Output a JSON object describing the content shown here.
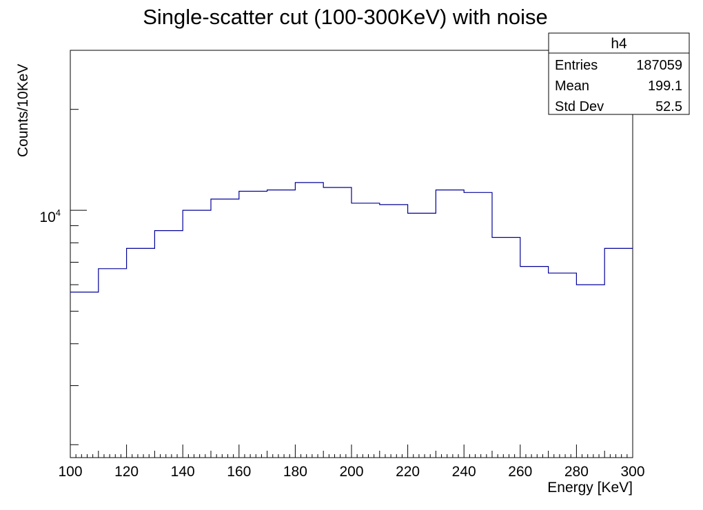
{
  "chart_data": {
    "type": "histogram",
    "title": "Single-scatter cut (100-300KeV) with noise",
    "xlabel": "Energy [KeV]",
    "ylabel": "Counts/10KeV",
    "y_scale": "log",
    "xlim": [
      100,
      300
    ],
    "ylim": [
      1830,
      30000
    ],
    "x_tick_labels": [
      "100",
      "120",
      "140",
      "160",
      "180",
      "200",
      "220",
      "240",
      "260",
      "280",
      "300"
    ],
    "y_tick_label": {
      "base": "10",
      "exponent": "4"
    },
    "bin_edges": [
      100,
      110,
      120,
      130,
      140,
      150,
      160,
      170,
      180,
      190,
      200,
      210,
      220,
      230,
      240,
      250,
      260,
      270,
      280,
      290,
      300
    ],
    "values": [
      5700,
      6700,
      7700,
      8700,
      10000,
      10800,
      11400,
      11500,
      12100,
      11700,
      10500,
      10400,
      9800,
      11500,
      11300,
      8300,
      6800,
      6500,
      6000,
      7700
    ],
    "line_color": "#000099",
    "stats_box": {
      "name": "h4",
      "rows": [
        {
          "label": "Entries",
          "value": "187059"
        },
        {
          "label": "Mean",
          "value": "199.1"
        },
        {
          "label": "Std Dev",
          "value": "52.5"
        }
      ]
    }
  }
}
